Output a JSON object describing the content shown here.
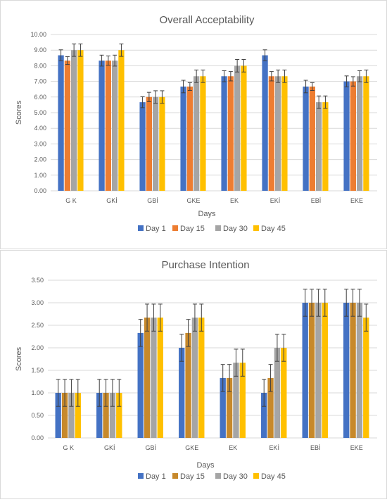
{
  "colors": {
    "day1": "#4472c4",
    "day15": "#ed7d31",
    "day15_alt": "#c7892b",
    "day30": "#a5a5a5",
    "day45": "#ffc000",
    "grid": "#d9d9d9",
    "text": "#595959",
    "error_bar": "#404040"
  },
  "chart_data": [
    {
      "type": "bar",
      "title": "Overall Acceptability",
      "xlabel": "Days",
      "ylabel": "Scores",
      "ylim": [
        0,
        10
      ],
      "ytick_step": 1,
      "ytick_labels": [
        "0.00",
        "1.00",
        "2.00",
        "3.00",
        "4.00",
        "5.00",
        "6.00",
        "7.00",
        "8.00",
        "9.00",
        "10.00"
      ],
      "categories": [
        "G K",
        "GKİ",
        "GBİ",
        "GKE",
        "EK",
        "EKİ",
        "EBİ",
        "EKE"
      ],
      "grid": true,
      "legend_position": "bottom",
      "series": [
        {
          "name": "Day 1",
          "color_key": "day1",
          "values": [
            8.67,
            8.33,
            5.67,
            6.67,
            7.33,
            8.67,
            6.67,
            7.0
          ],
          "errors": [
            0.35,
            0.35,
            0.35,
            0.4,
            0.35,
            0.35,
            0.4,
            0.35
          ]
        },
        {
          "name": "Day 15",
          "color_key": "day15",
          "values": [
            8.33,
            8.33,
            6.0,
            6.67,
            7.33,
            7.33,
            6.67,
            7.0
          ],
          "errors": [
            0.25,
            0.3,
            0.3,
            0.25,
            0.3,
            0.3,
            0.25,
            0.3
          ]
        },
        {
          "name": "Day 30",
          "color_key": "day30",
          "values": [
            9.0,
            8.33,
            6.0,
            7.33,
            8.0,
            7.33,
            5.67,
            7.33
          ],
          "errors": [
            0.4,
            0.35,
            0.4,
            0.4,
            0.4,
            0.4,
            0.4,
            0.35
          ]
        },
        {
          "name": "Day 45",
          "color_key": "day45",
          "values": [
            9.0,
            9.0,
            6.0,
            7.33,
            8.0,
            7.33,
            5.67,
            7.33
          ],
          "errors": [
            0.4,
            0.4,
            0.4,
            0.4,
            0.4,
            0.4,
            0.4,
            0.4
          ]
        }
      ]
    },
    {
      "type": "bar",
      "title": "Purchase Intention",
      "xlabel": "Days",
      "ylabel": "Scores",
      "ylim": [
        0,
        3.5
      ],
      "ytick_step": 0.5,
      "ytick_labels": [
        "0.00",
        "0.50",
        "1.00",
        "1.50",
        "2.00",
        "2.50",
        "3.00",
        "3.50"
      ],
      "categories": [
        "G K",
        "GKİ",
        "GBİ",
        "GKE",
        "EK",
        "EKİ",
        "EBİ",
        "EKE"
      ],
      "grid": true,
      "legend_position": "bottom",
      "series": [
        {
          "name": "Day 1",
          "color_key": "day1",
          "values": [
            1.0,
            1.0,
            2.33,
            2.0,
            1.33,
            1.0,
            3.0,
            3.0
          ],
          "errors": [
            0.3,
            0.3,
            0.3,
            0.3,
            0.3,
            0.3,
            0.3,
            0.3
          ]
        },
        {
          "name": "Day 15",
          "color_key": "day15_alt",
          "values": [
            1.0,
            1.0,
            2.67,
            2.33,
            1.33,
            1.33,
            3.0,
            3.0
          ],
          "errors": [
            0.3,
            0.3,
            0.3,
            0.3,
            0.3,
            0.3,
            0.3,
            0.3
          ]
        },
        {
          "name": "Day 30",
          "color_key": "day30",
          "values": [
            1.0,
            1.0,
            2.67,
            2.67,
            1.67,
            2.0,
            3.0,
            3.0
          ],
          "errors": [
            0.3,
            0.3,
            0.3,
            0.3,
            0.3,
            0.3,
            0.3,
            0.3
          ]
        },
        {
          "name": "Day 45",
          "color_key": "day45",
          "values": [
            1.0,
            1.0,
            2.67,
            2.67,
            1.67,
            2.0,
            3.0,
            2.67
          ],
          "errors": [
            0.3,
            0.3,
            0.3,
            0.3,
            0.3,
            0.3,
            0.3,
            0.3
          ]
        }
      ]
    }
  ]
}
